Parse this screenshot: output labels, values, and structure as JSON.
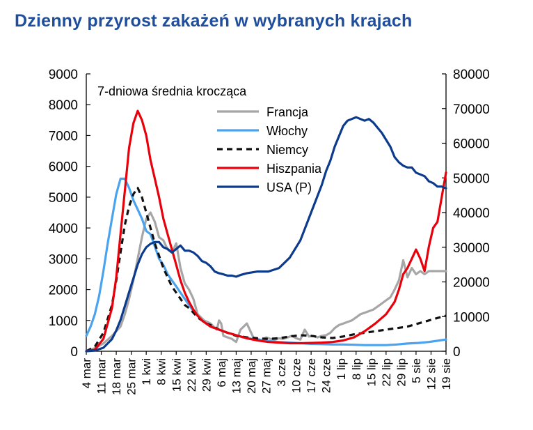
{
  "title": "Dzienny przyrost zakażeń w wybranych krajach",
  "chart_data": {
    "type": "line",
    "subtitle": "7-dniowa średnia  krocząca",
    "x_labels": [
      "4 mar",
      "11 mar",
      "18 mar",
      "25 mar",
      "1 kwi",
      "8 kwi",
      "15 kwi",
      "22 kwi",
      "29 kwi",
      "6 maj",
      "13 maj",
      "20 maj",
      "27 maj",
      "3 cze",
      "10 cze",
      "17 cze",
      "24 cze",
      "1 lip",
      "8 lip",
      "15 lip",
      "22 lip",
      "29 lip",
      "5 sie",
      "12 sie",
      "19 sie"
    ],
    "y_left": {
      "ticks": [
        0,
        1000,
        2000,
        3000,
        4000,
        5000,
        6000,
        7000,
        8000,
        9000
      ],
      "ylim": [
        0,
        9000
      ]
    },
    "y_right": {
      "ticks": [
        0,
        10000,
        20000,
        30000,
        40000,
        50000,
        60000,
        70000,
        80000
      ],
      "ylim": [
        0,
        80000
      ]
    },
    "legend_position": "top-center",
    "series": [
      {
        "name": "Francja",
        "color": "#a6a6a6",
        "dash": "none",
        "axis": "left",
        "x": [
          0,
          4,
          8,
          12,
          16,
          18,
          20,
          22,
          24,
          26,
          28,
          30,
          32,
          34,
          36,
          38,
          40,
          42,
          44,
          46,
          48,
          50,
          52,
          55,
          58,
          61,
          62,
          63,
          64,
          66,
          68,
          70,
          72,
          75,
          78,
          80,
          82,
          84,
          86,
          88,
          90,
          92,
          94,
          96,
          98,
          100,
          102,
          104,
          106,
          108,
          110,
          112,
          114,
          116,
          118,
          120,
          122,
          124,
          126,
          128,
          130,
          132,
          134,
          136,
          138,
          140,
          142,
          144,
          146,
          148,
          150,
          152,
          154,
          156,
          158,
          160,
          162,
          164,
          166,
          168
        ],
        "y": [
          0,
          100,
          250,
          500,
          800,
          1200,
          1700,
          2300,
          3000,
          3700,
          4300,
          4500,
          4200,
          3700,
          3600,
          3300,
          3200,
          3500,
          2700,
          2200,
          2000,
          1700,
          1200,
          1000,
          900,
          700,
          1000,
          900,
          500,
          450,
          400,
          300,
          700,
          900,
          450,
          400,
          350,
          450,
          400,
          380,
          420,
          400,
          450,
          500,
          420,
          380,
          700,
          480,
          500,
          450,
          500,
          520,
          600,
          750,
          850,
          900,
          950,
          1000,
          1100,
          1200,
          1250,
          1300,
          1350,
          1450,
          1550,
          1650,
          1750,
          2000,
          2300,
          2950,
          2400,
          2700,
          2500,
          2600,
          2500,
          2600,
          2600,
          2600,
          2600,
          2600
        ]
      },
      {
        "name": "Włochy",
        "color": "#4aa3ee",
        "dash": "none",
        "axis": "left",
        "x": [
          0,
          2,
          4,
          6,
          8,
          10,
          12,
          14,
          16,
          18,
          20,
          22,
          24,
          26,
          28,
          30,
          32,
          34,
          36,
          38,
          40,
          42,
          44,
          46,
          48,
          50,
          52,
          54,
          56,
          58,
          60,
          62,
          64,
          66,
          68,
          70,
          72,
          75,
          80,
          85,
          90,
          95,
          100,
          105,
          110,
          115,
          120,
          125,
          130,
          135,
          140,
          145,
          150,
          155,
          160,
          165,
          168
        ],
        "y": [
          500,
          800,
          1200,
          1800,
          2600,
          3500,
          4300,
          5100,
          5600,
          5600,
          5300,
          4900,
          4600,
          4300,
          3900,
          3800,
          3400,
          3000,
          2800,
          2500,
          2300,
          2100,
          1900,
          1700,
          1500,
          1300,
          1150,
          1000,
          900,
          800,
          750,
          700,
          650,
          600,
          560,
          520,
          480,
          420,
          380,
          330,
          300,
          280,
          260,
          240,
          230,
          220,
          220,
          210,
          200,
          200,
          200,
          220,
          250,
          270,
          300,
          350,
          380
        ]
      },
      {
        "name": "Niemcy",
        "color": "#111111",
        "dash": "8,6",
        "axis": "left",
        "x": [
          0,
          4,
          8,
          12,
          14,
          16,
          18,
          20,
          22,
          24,
          26,
          28,
          30,
          32,
          34,
          36,
          38,
          40,
          42,
          44,
          46,
          48,
          50,
          52,
          54,
          56,
          58,
          60,
          62,
          64,
          66,
          68,
          70,
          75,
          80,
          85,
          90,
          95,
          100,
          105,
          110,
          115,
          120,
          125,
          130,
          135,
          140,
          145,
          150,
          155,
          160,
          165,
          168
        ],
        "y": [
          0,
          150,
          600,
          1500,
          2300,
          3200,
          4100,
          4700,
          5100,
          5300,
          5000,
          4500,
          4000,
          3500,
          3100,
          2700,
          2400,
          2100,
          1900,
          1700,
          1500,
          1400,
          1250,
          1100,
          1000,
          900,
          850,
          780,
          700,
          650,
          600,
          550,
          500,
          450,
          420,
          400,
          420,
          480,
          520,
          500,
          450,
          430,
          480,
          550,
          600,
          650,
          700,
          750,
          800,
          900,
          1000,
          1100,
          1150
        ]
      },
      {
        "name": "Hiszpania",
        "color": "#e8000b",
        "dash": "none",
        "axis": "left",
        "x": [
          0,
          4,
          8,
          12,
          14,
          16,
          18,
          20,
          22,
          24,
          26,
          28,
          30,
          32,
          34,
          36,
          38,
          40,
          42,
          44,
          46,
          48,
          50,
          52,
          54,
          56,
          58,
          60,
          62,
          64,
          66,
          68,
          70,
          75,
          80,
          85,
          90,
          95,
          100,
          105,
          110,
          115,
          120,
          125,
          130,
          135,
          140,
          142,
          144,
          146,
          148,
          150,
          152,
          154,
          156,
          158,
          160,
          162,
          164,
          166,
          168
        ],
        "y": [
          0,
          50,
          400,
          1400,
          2400,
          3800,
          5200,
          6600,
          7400,
          7800,
          7500,
          7000,
          6200,
          5600,
          5000,
          4300,
          3800,
          3300,
          2800,
          2300,
          1900,
          1600,
          1350,
          1150,
          1000,
          900,
          800,
          750,
          700,
          650,
          600,
          560,
          520,
          420,
          350,
          300,
          280,
          260,
          260,
          270,
          280,
          300,
          350,
          450,
          650,
          900,
          1200,
          1400,
          1600,
          2000,
          2500,
          2700,
          3000,
          3300,
          3000,
          2600,
          3400,
          4000,
          4200,
          5000,
          5800
        ]
      },
      {
        "name": "USA (P)",
        "color": "#0c3a8c",
        "dash": "none",
        "axis": "right",
        "x": [
          0,
          4,
          8,
          12,
          14,
          16,
          18,
          20,
          22,
          24,
          26,
          28,
          30,
          32,
          34,
          36,
          38,
          40,
          42,
          44,
          46,
          48,
          50,
          52,
          54,
          56,
          58,
          60,
          62,
          64,
          66,
          68,
          70,
          72,
          75,
          80,
          85,
          90,
          95,
          100,
          105,
          110,
          112,
          114,
          116,
          118,
          120,
          122,
          124,
          126,
          128,
          130,
          132,
          134,
          136,
          138,
          140,
          142,
          144,
          146,
          148,
          150,
          152,
          154,
          156,
          158,
          160,
          162,
          164,
          166,
          168
        ],
        "y": [
          0,
          200,
          1000,
          3500,
          6000,
          9000,
          13000,
          17000,
          21000,
          25000,
          28000,
          30000,
          31000,
          31500,
          31500,
          30000,
          29500,
          28500,
          29500,
          30500,
          29000,
          29000,
          28500,
          27500,
          26000,
          25500,
          24500,
          23000,
          22500,
          22200,
          21800,
          21800,
          21500,
          22000,
          22500,
          23000,
          23000,
          24000,
          27000,
          32000,
          40000,
          48000,
          52000,
          55000,
          59000,
          62000,
          65000,
          66500,
          67000,
          67500,
          67000,
          66500,
          67000,
          66000,
          64500,
          63000,
          61000,
          59000,
          56000,
          54500,
          53500,
          53000,
          53000,
          51500,
          51000,
          50500,
          49000,
          48500,
          47500,
          47500,
          47000
        ]
      }
    ]
  }
}
